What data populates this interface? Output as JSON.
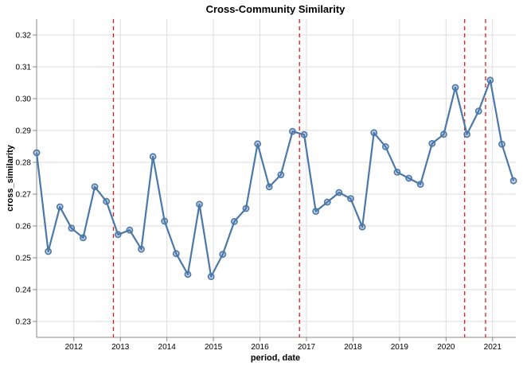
{
  "chart_data": {
    "type": "line",
    "title": "Cross-Community Similarity",
    "xlabel": "period, date",
    "ylabel": "cross_similarity",
    "xlim": [
      2011.2,
      2021.5
    ],
    "ylim": [
      0.225,
      0.325
    ],
    "x_ticks": [
      2012,
      2013,
      2014,
      2015,
      2016,
      2017,
      2018,
      2019,
      2020,
      2021
    ],
    "y_ticks": [
      0.23,
      0.24,
      0.25,
      0.26,
      0.27,
      0.28,
      0.29,
      0.3,
      0.31,
      0.32
    ],
    "y_tick_labels": [
      "0.23",
      "0.24",
      "0.25",
      "0.26",
      "0.27",
      "0.28",
      "0.29",
      "0.30",
      "0.31",
      "0.32"
    ],
    "x_tick_labels": [
      "2012",
      "2013",
      "2014",
      "2015",
      "2016",
      "2017",
      "2018",
      "2019",
      "2020",
      "2021"
    ],
    "grid": true,
    "series": [
      {
        "name": "cross_similarity",
        "color": "#4c78a8",
        "x": [
          2011.2,
          2011.45,
          2011.7,
          2011.95,
          2012.2,
          2012.45,
          2012.7,
          2012.95,
          2013.2,
          2013.45,
          2013.7,
          2013.95,
          2014.2,
          2014.45,
          2014.7,
          2014.95,
          2015.2,
          2015.45,
          2015.7,
          2015.95,
          2016.2,
          2016.45,
          2016.7,
          2016.95,
          2017.2,
          2017.45,
          2017.7,
          2017.95,
          2018.2,
          2018.45,
          2018.7,
          2018.95,
          2019.2,
          2019.45,
          2019.7,
          2019.95,
          2020.2,
          2020.45,
          2020.7,
          2020.95,
          2021.2,
          2021.45
        ],
        "values": [
          0.283,
          0.252,
          0.266,
          0.2593,
          0.2563,
          0.2723,
          0.2677,
          0.2573,
          0.2587,
          0.2527,
          0.2818,
          0.2615,
          0.2513,
          0.2448,
          0.2668,
          0.2441,
          0.2511,
          0.2614,
          0.2655,
          0.2858,
          0.2723,
          0.2761,
          0.2897,
          0.2887,
          0.2646,
          0.2675,
          0.2705,
          0.2686,
          0.2597,
          0.2893,
          0.2849,
          0.2769,
          0.275,
          0.2731,
          0.2859,
          0.2888,
          0.3035,
          0.2888,
          0.2961,
          0.3058,
          0.2857,
          0.2742
        ]
      }
    ],
    "reference_lines": {
      "orientation": "vertical",
      "style": "dashed",
      "color": "#e41a1c",
      "x": [
        2012.85,
        2016.85,
        2020.4,
        2020.85
      ]
    }
  }
}
